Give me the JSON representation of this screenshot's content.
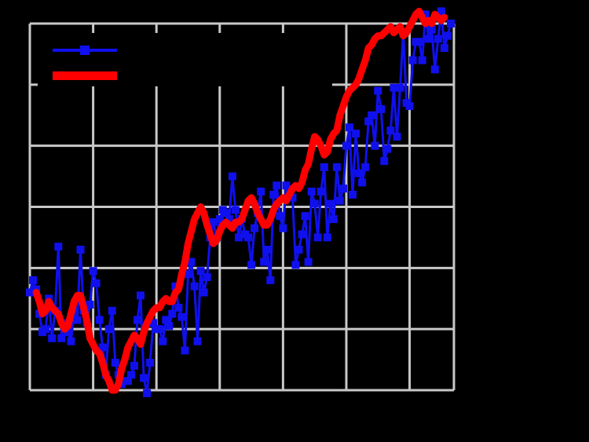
{
  "chart_data": {
    "type": "line",
    "title": "",
    "xlabel": "",
    "ylabel": "",
    "xlim": [
      1880,
      2014
    ],
    "ylim": [
      -0.6,
      0.6
    ],
    "grid": true,
    "legend": {
      "placement": "top-left"
    },
    "colors": {
      "background": "#000000",
      "grid": "#c8c8c8",
      "annual": "#1010ee",
      "smoothed": "#ff0000"
    },
    "series": [
      {
        "name": "",
        "style": "line-with-square-markers",
        "x": [
          1880,
          1881,
          1882,
          1883,
          1884,
          1885,
          1886,
          1887,
          1888,
          1889,
          1890,
          1891,
          1892,
          1893,
          1894,
          1895,
          1896,
          1897,
          1898,
          1899,
          1900,
          1901,
          1902,
          1903,
          1904,
          1905,
          1906,
          1907,
          1908,
          1909,
          1910,
          1911,
          1912,
          1913,
          1914,
          1915,
          1916,
          1917,
          1918,
          1919,
          1920,
          1921,
          1922,
          1923,
          1924,
          1925,
          1926,
          1927,
          1928,
          1929,
          1930,
          1931,
          1932,
          1933,
          1934,
          1935,
          1936,
          1937,
          1938,
          1939,
          1940,
          1941,
          1942,
          1943,
          1944,
          1945,
          1946,
          1947,
          1948,
          1949,
          1950,
          1951,
          1952,
          1953,
          1954,
          1955,
          1956,
          1957,
          1958,
          1959,
          1960,
          1961,
          1962,
          1963,
          1964,
          1965,
          1966,
          1967,
          1968,
          1969,
          1970,
          1971,
          1972,
          1973,
          1974,
          1975,
          1976,
          1977,
          1978,
          1979,
          1980,
          1981,
          1982,
          1983,
          1984,
          1985,
          1986,
          1987,
          1988,
          1989,
          1990,
          1991,
          1992,
          1993,
          1994,
          1995,
          1996,
          1997,
          1998,
          1999,
          2000,
          2001,
          2002,
          2003,
          2004,
          2005,
          2006,
          2007,
          2008,
          2009,
          2010,
          2011,
          2012,
          2013
        ],
        "values": [
          -0.28,
          -0.24,
          -0.27,
          -0.35,
          -0.41,
          -0.4,
          -0.3,
          -0.43,
          -0.34,
          -0.13,
          -0.43,
          -0.38,
          -0.41,
          -0.44,
          -0.34,
          -0.37,
          -0.14,
          -0.34,
          -0.38,
          -0.32,
          -0.21,
          -0.25,
          -0.37,
          -0.46,
          -0.55,
          -0.4,
          -0.34,
          -0.51,
          -0.55,
          -0.58,
          -0.57,
          -0.57,
          -0.55,
          -0.52,
          -0.37,
          -0.29,
          -0.56,
          -0.61,
          -0.51,
          -0.38,
          -0.4,
          -0.4,
          -0.44,
          -0.37,
          -0.39,
          -0.35,
          -0.26,
          -0.33,
          -0.36,
          -0.47,
          -0.22,
          -0.18,
          -0.26,
          -0.44,
          -0.21,
          -0.28,
          -0.23,
          -0.1,
          -0.05,
          -0.1,
          -0.04,
          -0.01,
          -0.02,
          -0.04,
          0.1,
          -0.01,
          -0.1,
          -0.04,
          -0.09,
          -0.1,
          -0.19,
          -0.07,
          -0.02,
          0.05,
          -0.18,
          -0.14,
          -0.24,
          0.04,
          0.07,
          -0.03,
          -0.07,
          0.07,
          0.03,
          0.03,
          -0.19,
          -0.14,
          -0.09,
          -0.03,
          -0.18,
          0.05,
          0.01,
          -0.1,
          0.05,
          0.13,
          -0.1,
          0.01,
          -0.04,
          0.13,
          0.02,
          0.06,
          0.2,
          0.26,
          0.04,
          0.24,
          0.11,
          0.08,
          0.13,
          0.28,
          0.3,
          0.2,
          0.38,
          0.32,
          0.15,
          0.19,
          0.25,
          0.39,
          0.23,
          0.39,
          0.57,
          0.34,
          0.33,
          0.48,
          0.54,
          0.54,
          0.48,
          0.63,
          0.55,
          0.58,
          0.45,
          0.55,
          0.64,
          0.52,
          0.56,
          0.6
        ]
      },
      {
        "name": "",
        "style": "thick-line",
        "x": [
          1882,
          1883,
          1884,
          1885,
          1886,
          1887,
          1888,
          1889,
          1890,
          1891,
          1892,
          1893,
          1894,
          1895,
          1896,
          1897,
          1898,
          1899,
          1900,
          1901,
          1902,
          1903,
          1904,
          1905,
          1906,
          1907,
          1908,
          1909,
          1910,
          1911,
          1912,
          1913,
          1914,
          1915,
          1916,
          1917,
          1918,
          1919,
          1920,
          1921,
          1922,
          1923,
          1924,
          1925,
          1926,
          1927,
          1928,
          1929,
          1930,
          1931,
          1932,
          1933,
          1934,
          1935,
          1936,
          1937,
          1938,
          1939,
          1940,
          1941,
          1942,
          1943,
          1944,
          1945,
          1946,
          1947,
          1948,
          1949,
          1950,
          1951,
          1952,
          1953,
          1954,
          1955,
          1956,
          1957,
          1958,
          1959,
          1960,
          1961,
          1962,
          1963,
          1964,
          1965,
          1966,
          1967,
          1968,
          1969,
          1970,
          1971,
          1972,
          1973,
          1974,
          1975,
          1976,
          1977,
          1978,
          1979,
          1980,
          1981,
          1982,
          1983,
          1984,
          1985,
          1986,
          1987,
          1988,
          1989,
          1990,
          1991,
          1992,
          1993,
          1994,
          1995,
          1996,
          1997,
          1998,
          1999,
          2000,
          2001,
          2002,
          2003,
          2004,
          2005,
          2006,
          2007,
          2008,
          2009,
          2010,
          2011
        ],
        "values": [
          -0.28,
          -0.31,
          -0.35,
          -0.34,
          -0.31,
          -0.33,
          -0.34,
          -0.35,
          -0.38,
          -0.4,
          -0.39,
          -0.35,
          -0.31,
          -0.29,
          -0.29,
          -0.33,
          -0.37,
          -0.43,
          -0.45,
          -0.47,
          -0.48,
          -0.51,
          -0.55,
          -0.57,
          -0.6,
          -0.6,
          -0.58,
          -0.53,
          -0.5,
          -0.46,
          -0.44,
          -0.42,
          -0.43,
          -0.45,
          -0.41,
          -0.38,
          -0.36,
          -0.34,
          -0.33,
          -0.33,
          -0.31,
          -0.3,
          -0.31,
          -0.31,
          -0.28,
          -0.27,
          -0.22,
          -0.18,
          -0.12,
          -0.08,
          -0.04,
          -0.02,
          0.0,
          -0.02,
          -0.06,
          -0.09,
          -0.12,
          -0.11,
          -0.08,
          -0.06,
          -0.05,
          -0.06,
          -0.07,
          -0.05,
          -0.05,
          -0.04,
          -0.01,
          0.02,
          0.03,
          0.01,
          -0.02,
          -0.04,
          -0.06,
          -0.06,
          -0.04,
          -0.01,
          0.01,
          0.02,
          0.03,
          0.02,
          0.04,
          0.06,
          0.07,
          0.06,
          0.08,
          0.12,
          0.14,
          0.19,
          0.23,
          0.22,
          0.2,
          0.17,
          0.18,
          0.22,
          0.24,
          0.25,
          0.3,
          0.33,
          0.36,
          0.38,
          0.39,
          0.4,
          0.42,
          0.45,
          0.48,
          0.52,
          0.53,
          0.55,
          0.56,
          0.56,
          0.57,
          0.58,
          0.59,
          0.57,
          0.58,
          0.59,
          0.56,
          0.57,
          0.59,
          0.61,
          0.63,
          0.64,
          0.62,
          0.6,
          0.61,
          0.6,
          0.63,
          0.62,
          0.61,
          0.62
        ]
      }
    ]
  }
}
